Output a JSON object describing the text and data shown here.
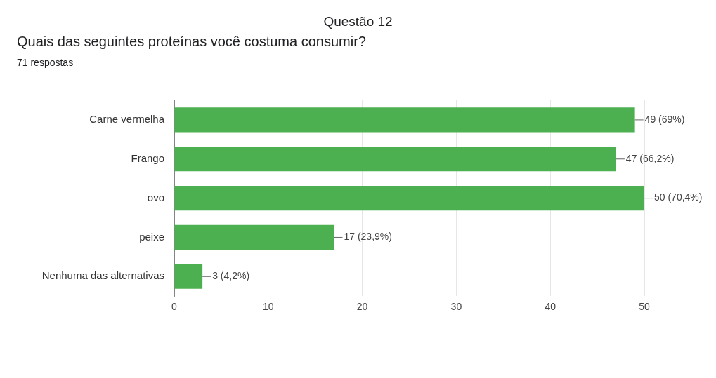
{
  "chart_data": {
    "type": "bar",
    "orientation": "horizontal",
    "title": "Questão 12",
    "subtitle": "Quais das seguintes proteínas você costuma consumir?",
    "annotations": [
      "71 respostas"
    ],
    "categories": [
      "Carne vermelha",
      "Frango",
      "ovo",
      "peixe",
      "Nenhuma das alternativas"
    ],
    "values": [
      49,
      47,
      50,
      17,
      3
    ],
    "color": "#4caf50",
    "value_labels": [
      "49 (69%)",
      "47 (66,2%)",
      "50 (70,4%)",
      "17 (23,9%)",
      "3 (4,2%)"
    ],
    "xlim": [
      0,
      50
    ],
    "xticks": [
      0,
      10,
      20,
      30,
      40,
      50
    ],
    "grid": "x",
    "legend": false
  }
}
